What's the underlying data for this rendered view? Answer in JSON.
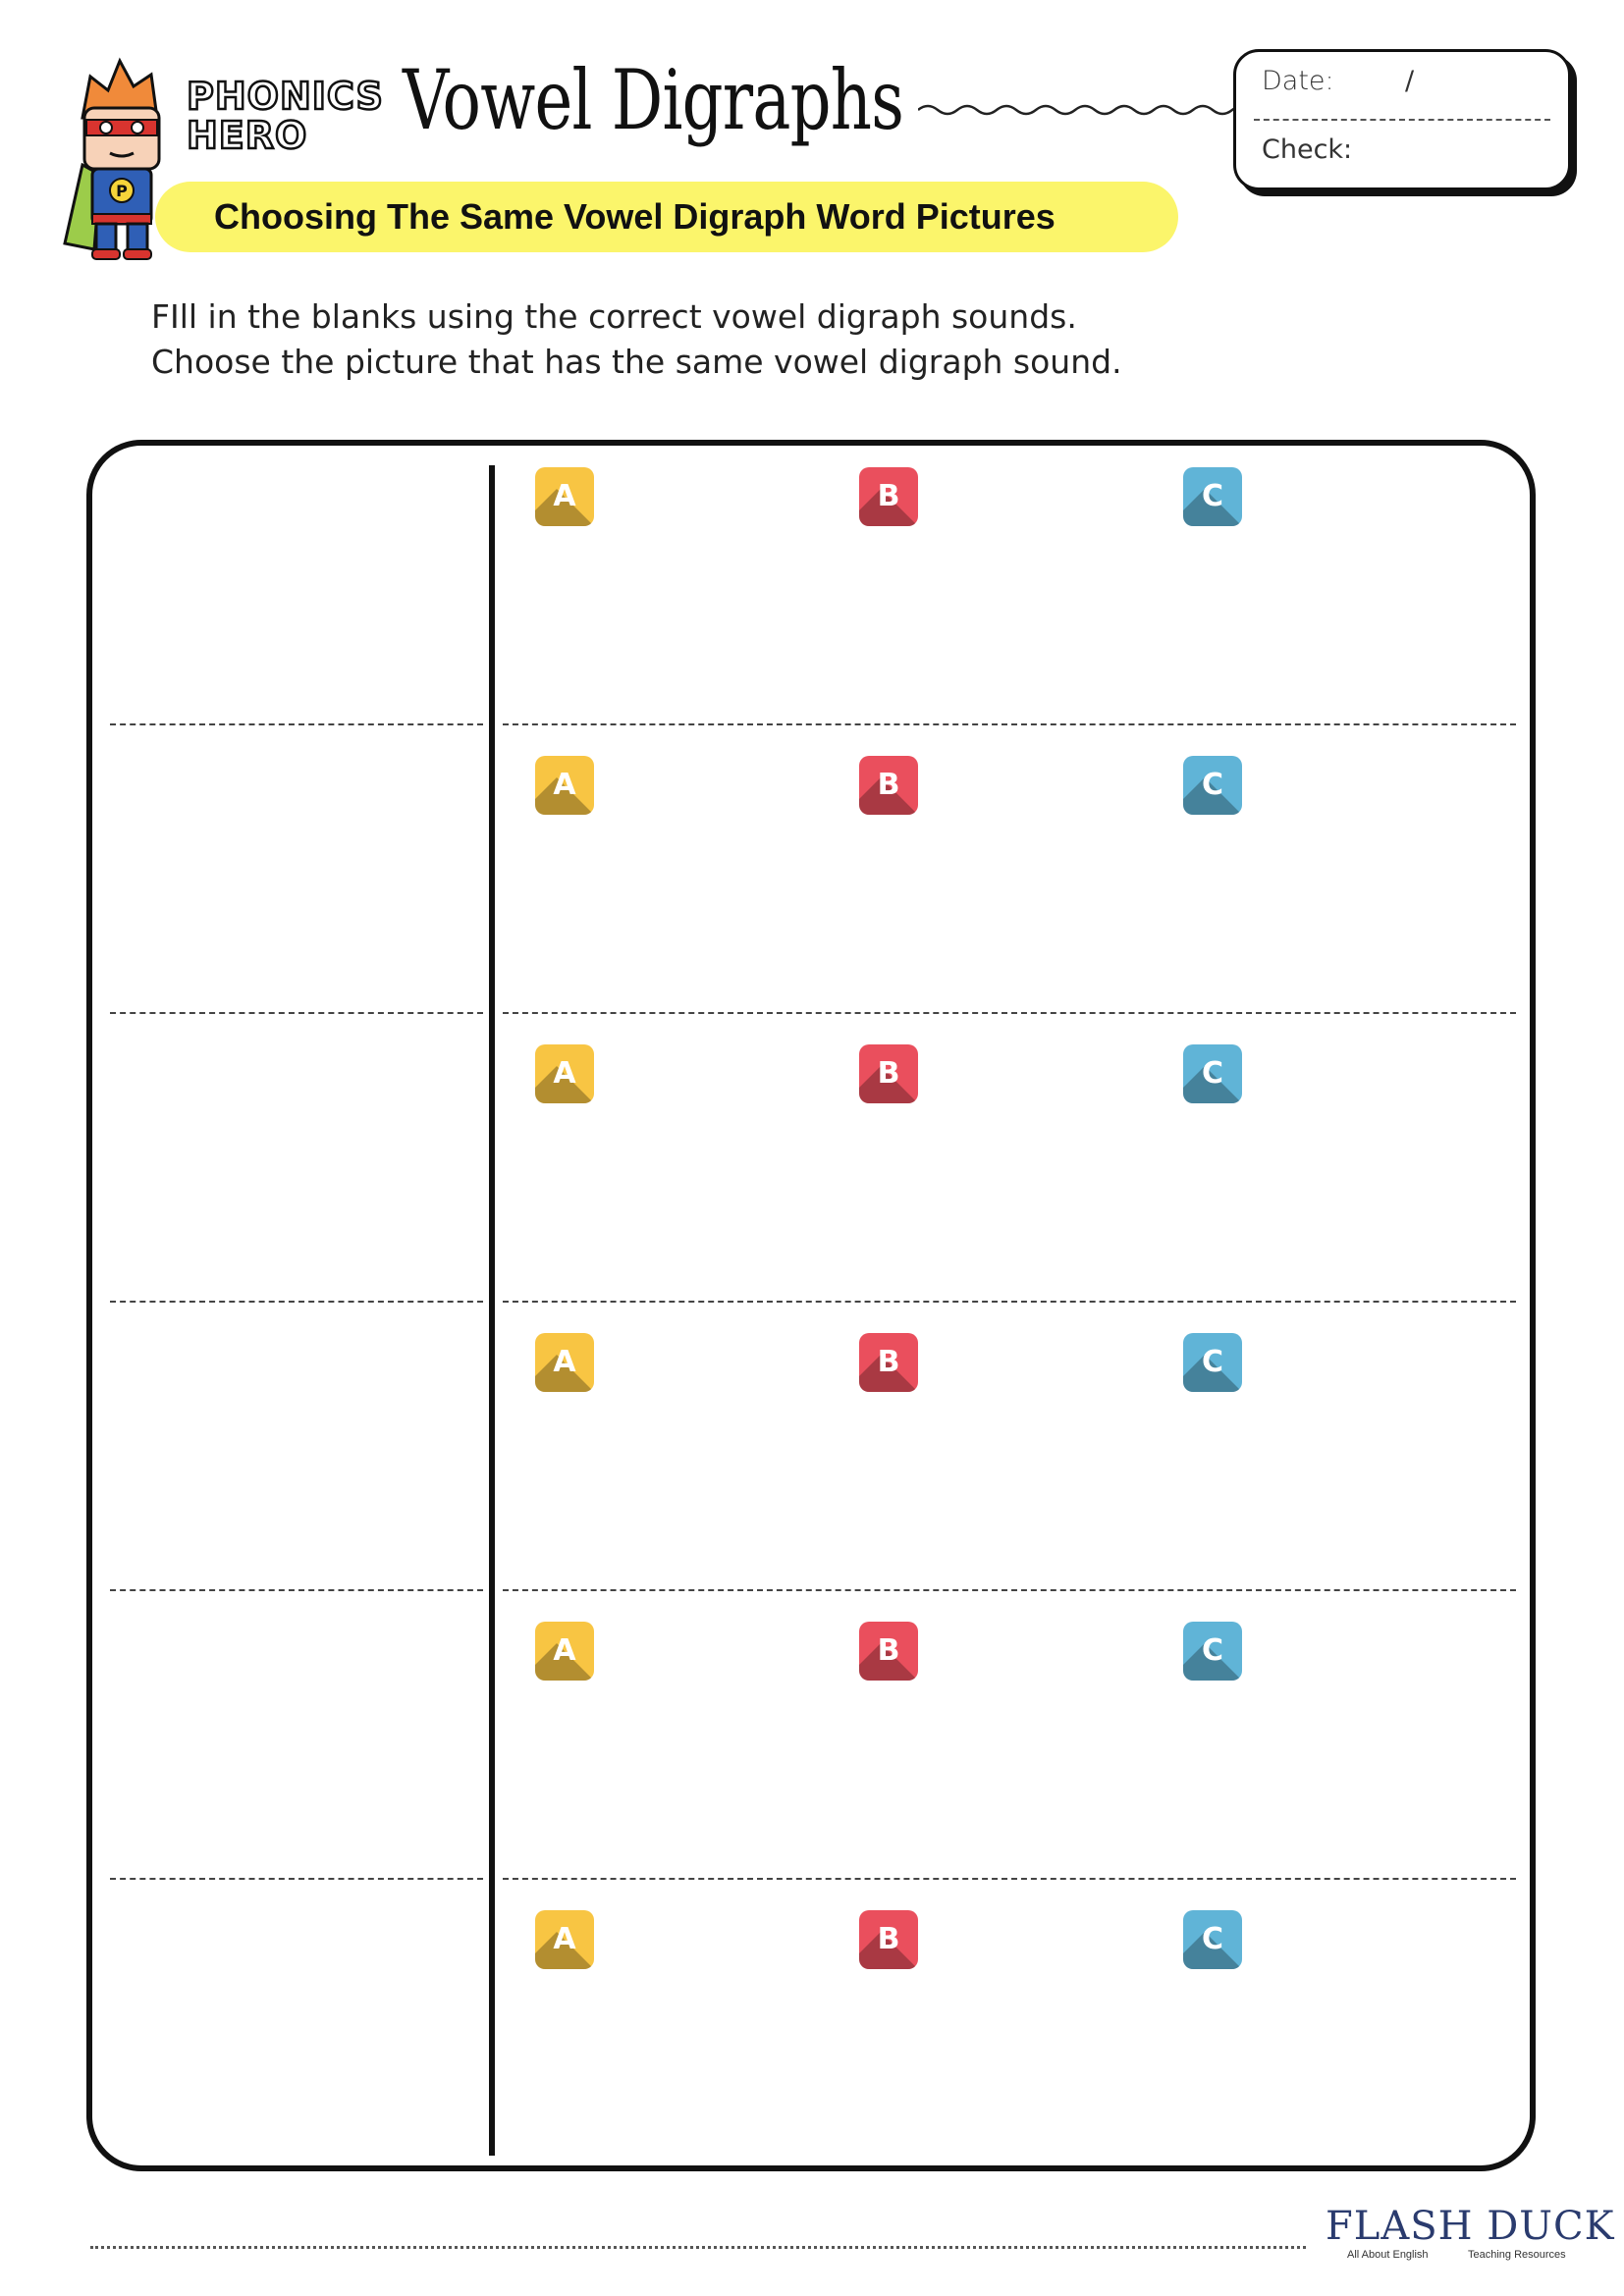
{
  "header": {
    "brand_line1": "PHONICS",
    "brand_line2": "HERO",
    "title": "Vowel Digraphs",
    "subtitle": "Choosing The Same Vowel Digraph Word Pictures",
    "date_label": "Date:",
    "date_separator": "/",
    "check_label": "Check:"
  },
  "instructions": [
    "FIll in the blanks using the correct vowel digraph sounds.",
    "Choose the picture that has the same vowel digraph sound."
  ],
  "rows": [
    {
      "options": [
        "A",
        "B",
        "C"
      ]
    },
    {
      "options": [
        "A",
        "B",
        "C"
      ]
    },
    {
      "options": [
        "A",
        "B",
        "C"
      ]
    },
    {
      "options": [
        "A",
        "B",
        "C"
      ]
    },
    {
      "options": [
        "A",
        "B",
        "C"
      ]
    },
    {
      "options": [
        "A",
        "B",
        "C"
      ]
    }
  ],
  "colors": {
    "option_a": "#f8c543",
    "option_b": "#ea4f5d",
    "option_c": "#60b4d7",
    "subtitle_bar": "#fbf56b"
  },
  "footer": {
    "logo_text": "FLASH DUCK",
    "logo_tagline_left": "All About English",
    "logo_tagline_right": "Teaching Resources"
  }
}
